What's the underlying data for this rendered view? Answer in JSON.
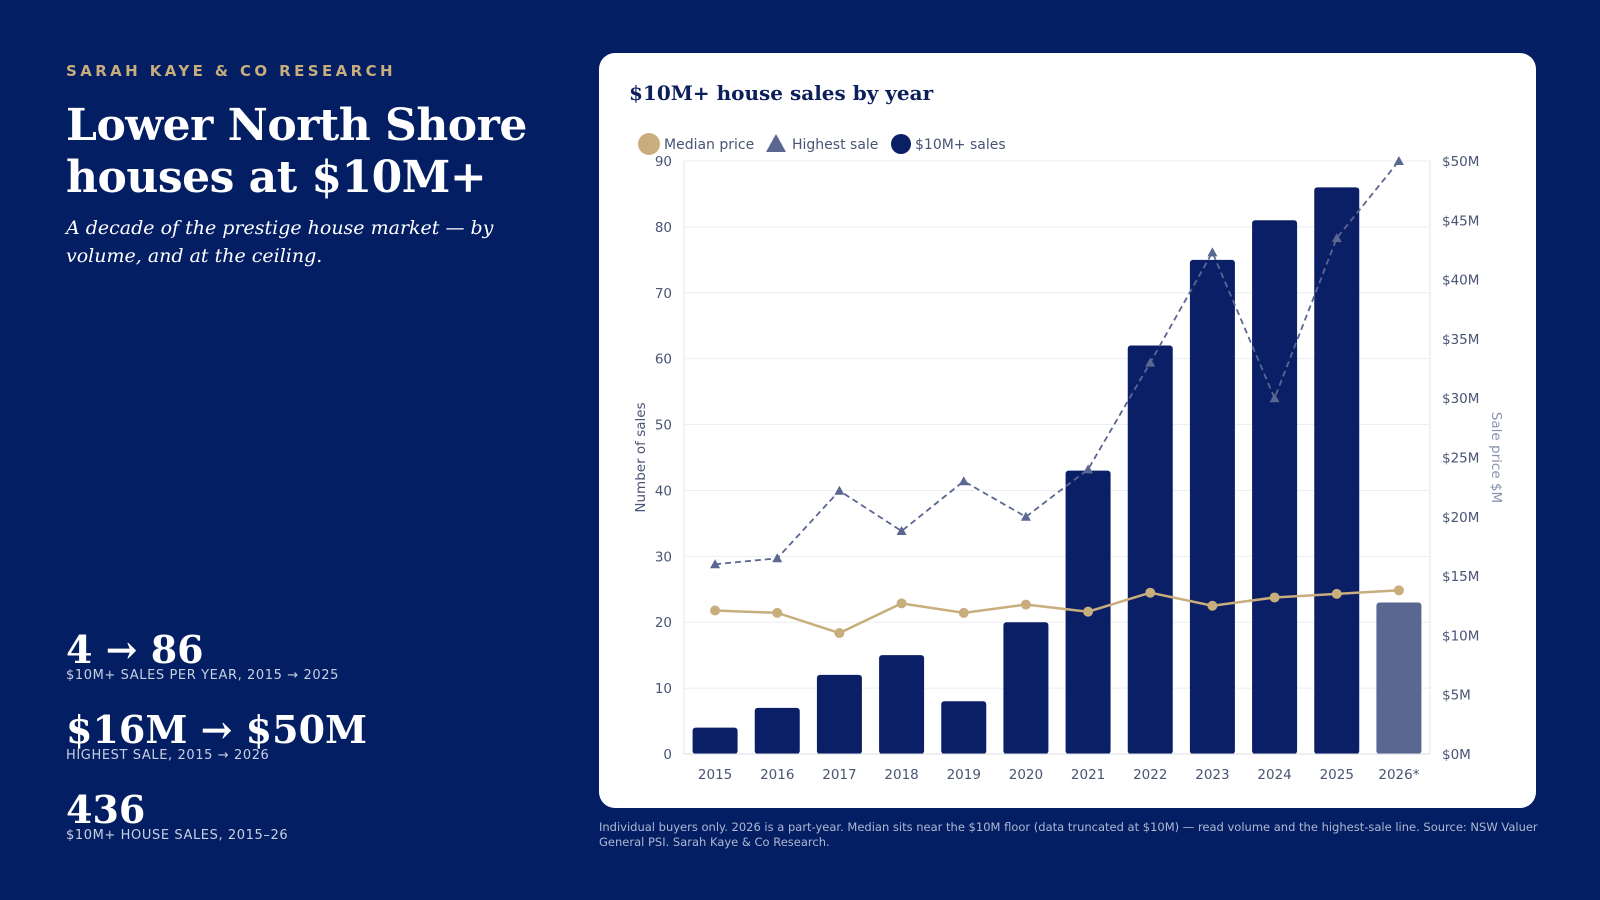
{
  "header": {
    "kicker": "SARAH KAYE & CO RESEARCH",
    "title": "Lower North Shore houses at $10M+",
    "subtitle": "A decade of the prestige house market — by volume, and at the ceiling."
  },
  "stats": [
    {
      "value": "4 → 86",
      "label": "$10M+ SALES PER YEAR, 2015 → 2025"
    },
    {
      "value": "$16M → $50M",
      "label": "HIGHEST SALE, 2015 → 2026"
    },
    {
      "value": "436",
      "label": "$10M+ HOUSE SALES, 2015–26"
    }
  ],
  "footnote": "Individual buyers only. 2026 is a part-year. Median sits near the $10M floor (data truncated at $10M) — read volume and the highest-sale line. Source: NSW Valuer General PSI. Sarah Kaye & Co Research.",
  "colors": {
    "background": "#031E63",
    "bar": "#0B1F66",
    "bar_partial": "#5A6791",
    "median": "#C8AE7D",
    "highest": "#5A6791",
    "accent": "#C8AE7D"
  },
  "chart_data": {
    "type": "bar",
    "title": "$10M+ house sales by year",
    "categories": [
      "2015",
      "2016",
      "2017",
      "2018",
      "2019",
      "2020",
      "2021",
      "2022",
      "2023",
      "2024",
      "2025",
      "2026*"
    ],
    "series": [
      {
        "name": "$10M+ sales",
        "type": "bar",
        "axis": "left",
        "values": [
          4,
          7,
          12,
          15,
          8,
          20,
          43,
          62,
          75,
          81,
          86,
          23
        ]
      },
      {
        "name": "Highest sale",
        "type": "line",
        "axis": "right",
        "style": "dashed",
        "marker": "triangle",
        "values": [
          16,
          16.5,
          22.2,
          18.8,
          23,
          20,
          24,
          33,
          42.3,
          30,
          43.5,
          50
        ]
      },
      {
        "name": "Median price",
        "type": "line",
        "axis": "right",
        "marker": "circle",
        "values": [
          12.1,
          11.9,
          10.2,
          12.7,
          11.9,
          12.6,
          12,
          13.6,
          12.5,
          13.2,
          13.5,
          13.8
        ]
      }
    ],
    "legend": [
      "Median price",
      "Highest sale",
      "$10M+ sales"
    ],
    "legend_position": "top-left",
    "ylabel": "Number of sales",
    "y2label": "Sale price $M",
    "ylim": [
      0,
      90
    ],
    "y2lim": [
      0,
      50
    ],
    "yticks": [
      "0",
      "10",
      "20",
      "30",
      "40",
      "50",
      "60",
      "70",
      "80",
      "90"
    ],
    "y2ticks": [
      "$0M",
      "$5M",
      "$10M",
      "$15M",
      "$20M",
      "$25M",
      "$30M",
      "$35M",
      "$40M",
      "$45M",
      "$50M"
    ],
    "grid": true
  }
}
